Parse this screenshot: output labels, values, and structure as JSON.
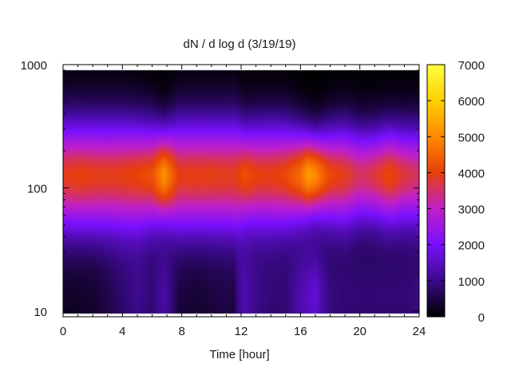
{
  "chart_data": {
    "type": "heatmap",
    "title": "dN / d log d (3/19/19)",
    "xlabel": "Time [hour]",
    "ylabel": "",
    "xlim": [
      0,
      24
    ],
    "x_ticks": [
      0,
      4,
      8,
      12,
      16,
      20,
      24
    ],
    "x_tick_labels": [
      "0",
      "4",
      "8",
      "12",
      "16",
      "20",
      "24"
    ],
    "ylim": [
      9,
      1000
    ],
    "yscale": "log",
    "y_ticks": [
      10,
      100,
      1000
    ],
    "y_tick_labels": [
      "10",
      "100",
      "1000"
    ],
    "data_y_range": [
      9.5,
      900
    ],
    "colorbar": {
      "min": 0,
      "max": 7000,
      "ticks": [
        0,
        1000,
        2000,
        3000,
        4000,
        5000,
        6000,
        7000
      ],
      "tick_labels": [
        "0",
        "1000",
        "2000",
        "3000",
        "4000",
        "5000",
        "6000",
        "7000"
      ],
      "palette": [
        "#000000",
        "#3c0a8c",
        "#7a10ff",
        "#c020c8",
        "#e8400a",
        "#ff8a00",
        "#ffd000",
        "#ffff40"
      ]
    },
    "peak_diameter": 130,
    "time_series": {
      "hours": [
        0,
        1,
        2,
        3,
        4,
        5,
        6,
        6.8,
        7.5,
        7.8,
        9,
        10,
        11,
        11.5,
        11.8,
        12.2,
        13,
        14,
        15,
        16,
        16.5,
        17,
        17.5,
        18,
        19,
        20,
        21,
        22,
        23,
        24
      ],
      "peak_value": [
        3900,
        4000,
        3950,
        3900,
        3950,
        4050,
        4200,
        5100,
        4300,
        3950,
        3950,
        3950,
        3900,
        3900,
        4000,
        4200,
        4000,
        3950,
        4100,
        4600,
        5200,
        5000,
        4500,
        4100,
        3900,
        3500,
        3700,
        4100,
        3700,
        3500
      ],
      "mode_width": [
        0.34,
        0.34,
        0.34,
        0.34,
        0.34,
        0.33,
        0.31,
        0.27,
        0.31,
        0.34,
        0.34,
        0.34,
        0.34,
        0.35,
        0.33,
        0.3,
        0.31,
        0.32,
        0.31,
        0.27,
        0.25,
        0.24,
        0.26,
        0.28,
        0.3,
        0.28,
        0.28,
        0.29,
        0.29,
        0.3
      ],
      "small_particle_level": [
        300,
        300,
        350,
        600,
        900,
        1200,
        1000,
        1500,
        900,
        500,
        400,
        500,
        600,
        500,
        1200,
        1600,
        1200,
        1000,
        1000,
        1600,
        1800,
        2000,
        1500,
        1100,
        1000,
        1000,
        1000,
        1000,
        1000,
        1100
      ]
    }
  }
}
